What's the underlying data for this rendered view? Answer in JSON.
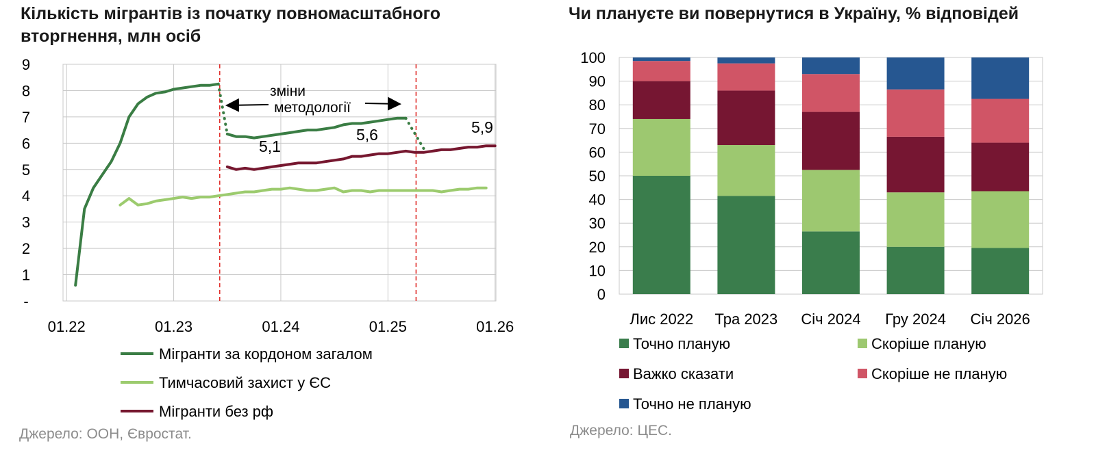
{
  "left": {
    "title": "Кількість мігрантів із початку повномасштабного вторгнення, млн осіб",
    "source": "Джерело: ООН, Євростат.",
    "annotation": {
      "line1": "зміни",
      "line2": "методології"
    },
    "data_labels": [
      "5,1",
      "5,6",
      "5,9"
    ],
    "y_tick_labels": [
      "-",
      "1",
      "2",
      "3",
      "4",
      "5",
      "6",
      "7",
      "8",
      "9"
    ],
    "x_tick_labels": [
      "01.22",
      "01.23",
      "01.24",
      "01.25",
      "01.26"
    ],
    "colors": {
      "dark_green": "#3a7d44",
      "light_green": "#9ccb6e",
      "maroon": "#76172f",
      "vline": "#e0302c",
      "grid": "#c8c8c8"
    }
  },
  "right": {
    "title": "Чи плануєте ви повернутися в Україну, % відповідей",
    "source": "Джерело: ЦЕС.",
    "colors": [
      "#3a7d4c",
      "#9dc870",
      "#761632",
      "#d05566",
      "#265791"
    ]
  },
  "chart_data": [
    {
      "type": "line",
      "title": "Кількість мігрантів із початку повномасштабного вторгнення, млн осіб",
      "xlabel": "",
      "ylabel": "",
      "x_range": [
        "2022-01",
        "2026-01"
      ],
      "ylim": [
        0,
        9
      ],
      "grid": true,
      "legend": "bottom",
      "vertical_markers": [
        "2023-06",
        "2025-04"
      ],
      "series": [
        {
          "name": "Мігранти за кордоном загалом",
          "segments": [
            {
              "style": "solid",
              "points": [
                [
                  "2022-02",
                  0.6
                ],
                [
                  "2022-03",
                  3.5
                ],
                [
                  "2022-04",
                  4.3
                ],
                [
                  "2022-05",
                  4.8
                ],
                [
                  "2022-06",
                  5.3
                ],
                [
                  "2022-07",
                  6.0
                ],
                [
                  "2022-08",
                  7.0
                ],
                [
                  "2022-09",
                  7.5
                ],
                [
                  "2022-10",
                  7.75
                ],
                [
                  "2022-11",
                  7.9
                ],
                [
                  "2022-12",
                  7.95
                ],
                [
                  "2023-01",
                  8.05
                ],
                [
                  "2023-02",
                  8.1
                ],
                [
                  "2023-03",
                  8.15
                ],
                [
                  "2023-04",
                  8.2
                ],
                [
                  "2023-05",
                  8.2
                ],
                [
                  "2023-06",
                  8.25
                ]
              ]
            },
            {
              "style": "dotted",
              "points": [
                [
                  "2023-06",
                  8.25
                ],
                [
                  "2023-07",
                  6.35
                ]
              ]
            },
            {
              "style": "solid",
              "points": [
                [
                  "2023-07",
                  6.35
                ],
                [
                  "2023-08",
                  6.25
                ],
                [
                  "2023-09",
                  6.25
                ],
                [
                  "2023-10",
                  6.2
                ],
                [
                  "2023-11",
                  6.25
                ],
                [
                  "2023-12",
                  6.3
                ],
                [
                  "2024-01",
                  6.35
                ],
                [
                  "2024-02",
                  6.4
                ],
                [
                  "2024-03",
                  6.45
                ],
                [
                  "2024-04",
                  6.5
                ],
                [
                  "2024-05",
                  6.5
                ],
                [
                  "2024-06",
                  6.55
                ],
                [
                  "2024-07",
                  6.6
                ],
                [
                  "2024-08",
                  6.7
                ],
                [
                  "2024-09",
                  6.75
                ],
                [
                  "2024-10",
                  6.75
                ],
                [
                  "2024-11",
                  6.8
                ],
                [
                  "2024-12",
                  6.85
                ],
                [
                  "2025-01",
                  6.9
                ],
                [
                  "2025-02",
                  6.95
                ],
                [
                  "2025-03",
                  6.95
                ]
              ]
            },
            {
              "style": "dotted",
              "points": [
                [
                  "2025-03",
                  6.95
                ],
                [
                  "2025-05",
                  5.8
                ]
              ]
            }
          ]
        },
        {
          "name": "Тимчасовий захист у ЄС",
          "segments": [
            {
              "style": "solid",
              "points": [
                [
                  "2022-07",
                  3.65
                ],
                [
                  "2022-08",
                  3.9
                ],
                [
                  "2022-09",
                  3.65
                ],
                [
                  "2022-10",
                  3.7
                ],
                [
                  "2022-11",
                  3.8
                ],
                [
                  "2022-12",
                  3.85
                ],
                [
                  "2023-01",
                  3.9
                ],
                [
                  "2023-02",
                  3.95
                ],
                [
                  "2023-03",
                  3.9
                ],
                [
                  "2023-04",
                  3.95
                ],
                [
                  "2023-05",
                  3.95
                ],
                [
                  "2023-06",
                  4.0
                ],
                [
                  "2023-07",
                  4.05
                ],
                [
                  "2023-08",
                  4.1
                ],
                [
                  "2023-09",
                  4.15
                ],
                [
                  "2023-10",
                  4.15
                ],
                [
                  "2023-11",
                  4.2
                ],
                [
                  "2023-12",
                  4.25
                ],
                [
                  "2024-01",
                  4.25
                ],
                [
                  "2024-02",
                  4.3
                ],
                [
                  "2024-03",
                  4.25
                ],
                [
                  "2024-04",
                  4.2
                ],
                [
                  "2024-05",
                  4.2
                ],
                [
                  "2024-06",
                  4.25
                ],
                [
                  "2024-07",
                  4.3
                ],
                [
                  "2024-08",
                  4.15
                ],
                [
                  "2024-09",
                  4.2
                ],
                [
                  "2024-10",
                  4.2
                ],
                [
                  "2024-11",
                  4.15
                ],
                [
                  "2024-12",
                  4.2
                ],
                [
                  "2025-01",
                  4.2
                ],
                [
                  "2025-02",
                  4.2
                ],
                [
                  "2025-03",
                  4.2
                ],
                [
                  "2025-04",
                  4.2
                ],
                [
                  "2025-05",
                  4.2
                ],
                [
                  "2025-06",
                  4.2
                ],
                [
                  "2025-07",
                  4.15
                ],
                [
                  "2025-08",
                  4.2
                ],
                [
                  "2025-09",
                  4.25
                ],
                [
                  "2025-10",
                  4.25
                ],
                [
                  "2025-11",
                  4.3
                ],
                [
                  "2025-12",
                  4.3
                ]
              ]
            }
          ]
        },
        {
          "name": "Мігранти без рф",
          "segments": [
            {
              "style": "solid",
              "points": [
                [
                  "2023-07",
                  5.1
                ],
                [
                  "2023-08",
                  5.0
                ],
                [
                  "2023-09",
                  5.05
                ],
                [
                  "2023-10",
                  5.0
                ],
                [
                  "2023-11",
                  5.05
                ],
                [
                  "2023-12",
                  5.1
                ],
                [
                  "2024-01",
                  5.15
                ],
                [
                  "2024-02",
                  5.2
                ],
                [
                  "2024-03",
                  5.25
                ],
                [
                  "2024-04",
                  5.25
                ],
                [
                  "2024-05",
                  5.25
                ],
                [
                  "2024-06",
                  5.3
                ],
                [
                  "2024-07",
                  5.35
                ],
                [
                  "2024-08",
                  5.4
                ],
                [
                  "2024-09",
                  5.5
                ],
                [
                  "2024-10",
                  5.5
                ],
                [
                  "2024-11",
                  5.55
                ],
                [
                  "2024-12",
                  5.6
                ],
                [
                  "2025-01",
                  5.6
                ],
                [
                  "2025-02",
                  5.65
                ],
                [
                  "2025-03",
                  5.7
                ],
                [
                  "2025-04",
                  5.65
                ],
                [
                  "2025-05",
                  5.65
                ],
                [
                  "2025-06",
                  5.7
                ],
                [
                  "2025-07",
                  5.75
                ],
                [
                  "2025-08",
                  5.75
                ],
                [
                  "2025-09",
                  5.8
                ],
                [
                  "2025-10",
                  5.85
                ],
                [
                  "2025-11",
                  5.85
                ],
                [
                  "2025-12",
                  5.9
                ],
                [
                  "2026-01",
                  5.9
                ]
              ]
            }
          ]
        }
      ]
    },
    {
      "type": "bar",
      "stacked": true,
      "title": "Чи плануєте ви повернутися в Україну, % відповідей",
      "xlabel": "",
      "ylabel": "",
      "categories": [
        "Лис 2022",
        "Тра 2023",
        "Січ 2024",
        "Гру 2024",
        "Січ 2026"
      ],
      "ylim": [
        0,
        100
      ],
      "y_ticks": [
        0,
        10,
        20,
        30,
        40,
        50,
        60,
        70,
        80,
        90,
        100
      ],
      "grid": true,
      "legend": "bottom",
      "series": [
        {
          "name": "Точно планую",
          "values": [
            50,
            41.5,
            26.5,
            20,
            19.5
          ]
        },
        {
          "name": "Скоріше планую",
          "values": [
            24,
            21.5,
            26,
            23,
            24
          ]
        },
        {
          "name": "Важко сказати",
          "values": [
            16,
            23,
            24.5,
            23.5,
            20.5
          ]
        },
        {
          "name": "Скоріше не планую",
          "values": [
            8.5,
            11.5,
            16,
            20,
            18.5
          ]
        },
        {
          "name": "Точно не планую",
          "values": [
            1.5,
            2.5,
            7,
            13.5,
            17.5
          ]
        }
      ]
    }
  ]
}
